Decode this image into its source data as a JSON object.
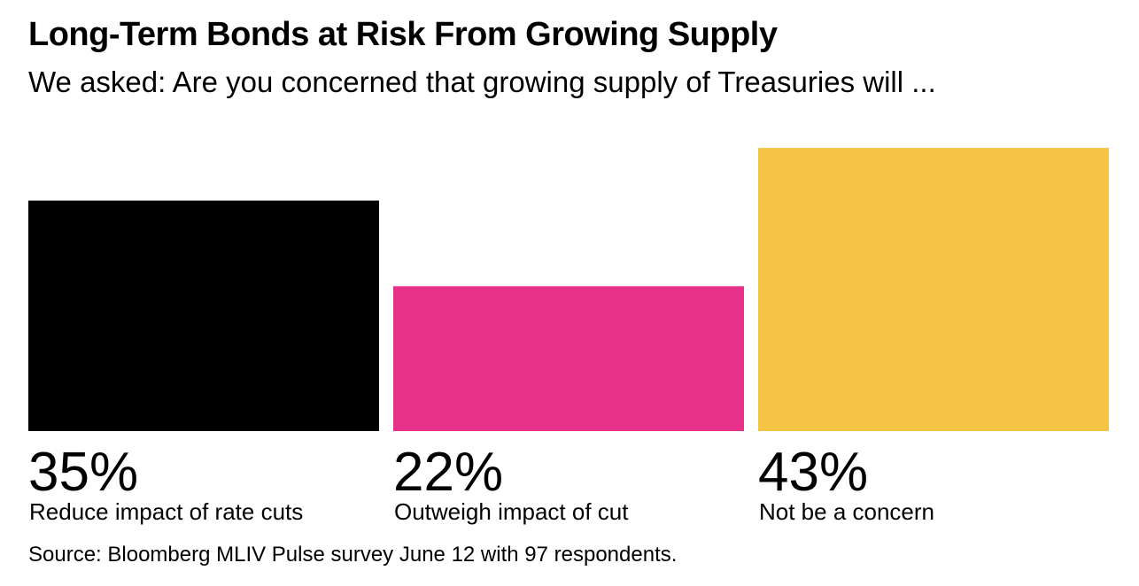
{
  "header": {
    "title": "Long-Term Bonds at Risk From Growing Supply",
    "subtitle": "We asked: Are you concerned that growing supply of Treasuries will ..."
  },
  "footer": {
    "source": "Source: Bloomberg MLIV Pulse survey June 12 with 97 respondents."
  },
  "chart_data": {
    "type": "bar",
    "title": "Long-Term Bonds at Risk From Growing Supply",
    "subtitle": "We asked: Are you concerned that growing supply of Treasuries will ...",
    "categories": [
      "Reduce impact of rate cuts",
      "Outweigh impact of cut",
      "Not be a concern"
    ],
    "values": [
      35,
      22,
      43
    ],
    "value_labels": [
      "35%",
      "22%",
      "43%"
    ],
    "unit": "%",
    "colors": [
      "#000000",
      "#e8318a",
      "#f5c444"
    ],
    "xlabel": "",
    "ylabel": "",
    "grid": false,
    "legend": "none"
  }
}
